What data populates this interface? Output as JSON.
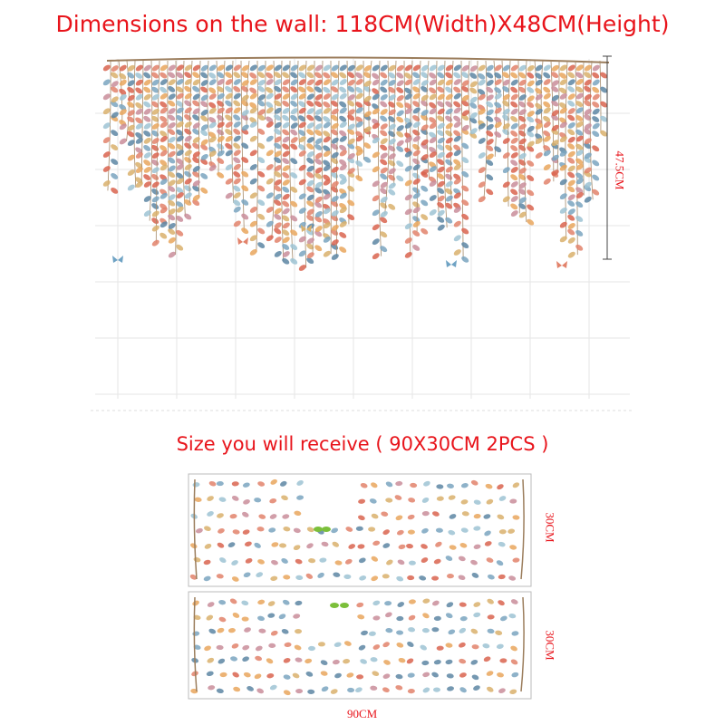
{
  "wall_heading": "Dimensions on the wall: 118CM(Width)X48CM(Height)",
  "wall_height_label": "47.5CM",
  "receive_heading": "Size you will receive ( 90X30CM 2PCS )",
  "sheet_height_label": "30CM",
  "sheet_width_label": "90CM",
  "colors": {
    "accent": "#e8141b",
    "leaf_palette": [
      "#e2836b",
      "#d9644f",
      "#e9a65d",
      "#d9b06c",
      "#7aa4bf",
      "#5d86a3",
      "#9ec3d3",
      "#c98d9a"
    ]
  }
}
